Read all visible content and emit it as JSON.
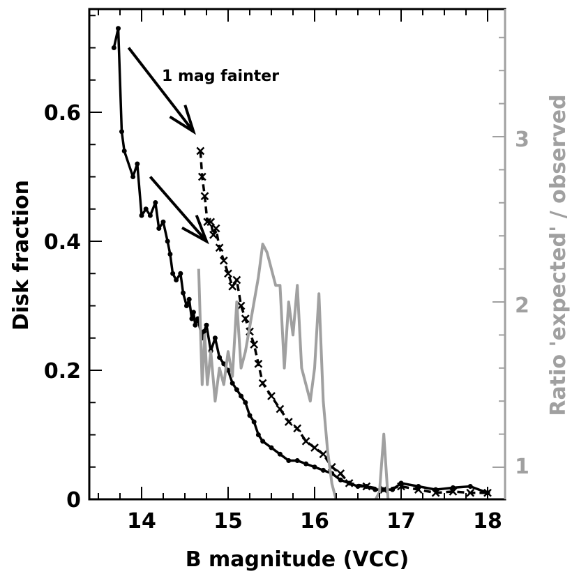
{
  "chart_data": {
    "type": "line",
    "title": "",
    "xlabel": "B magnitude (VCC)",
    "ylabel": "Disk fraction",
    "y2label": "Ratio 'expected' / observed",
    "xlim": [
      13.4,
      18.2
    ],
    "ylim": [
      0,
      0.76
    ],
    "y2lim": [
      0.8,
      3.7
    ],
    "x_ticks": [
      14,
      15,
      16,
      17,
      18
    ],
    "x_tick_labels": [
      "14",
      "15",
      "16",
      "17",
      "18"
    ],
    "y_ticks": [
      0,
      0.2,
      0.4,
      0.6
    ],
    "y_tick_labels": [
      "0",
      "0.2",
      "0.4",
      "0.6"
    ],
    "y2_ticks": [
      1,
      2,
      3
    ],
    "y2_tick_labels": [
      "1",
      "2",
      "3"
    ],
    "colors": {
      "axes": "#000000",
      "secondary": "#a0a0a0"
    },
    "annotation": "1 mag fainter",
    "arrows": [
      {
        "from": [
          13.85,
          0.7
        ],
        "to": [
          14.6,
          0.57
        ]
      },
      {
        "from": [
          14.1,
          0.5
        ],
        "to": [
          14.75,
          0.4
        ]
      }
    ],
    "series": [
      {
        "axis": "left",
        "style": "solid-dots",
        "x": [
          13.68,
          13.73,
          13.77,
          13.8,
          13.9,
          13.95,
          14.0,
          14.05,
          14.1,
          14.16,
          14.2,
          14.25,
          14.3,
          14.33,
          14.36,
          14.4,
          14.45,
          14.48,
          14.52,
          14.55,
          14.58,
          14.6,
          14.62,
          14.65,
          14.7,
          14.72,
          14.75,
          14.8,
          14.85,
          14.9,
          14.95,
          15.0,
          15.05,
          15.1,
          15.15,
          15.2,
          15.25,
          15.3,
          15.35,
          15.4,
          15.5,
          15.6,
          15.7,
          15.8,
          15.9,
          16.0,
          16.1,
          16.2,
          16.3,
          16.4,
          16.5,
          16.6,
          16.7,
          16.8,
          16.9,
          17.0,
          17.2,
          17.4,
          17.6,
          17.8,
          18.0
        ],
        "y": [
          0.7,
          0.73,
          0.57,
          0.54,
          0.5,
          0.52,
          0.44,
          0.45,
          0.44,
          0.46,
          0.42,
          0.43,
          0.4,
          0.38,
          0.35,
          0.34,
          0.35,
          0.32,
          0.3,
          0.31,
          0.28,
          0.29,
          0.27,
          0.28,
          0.25,
          0.26,
          0.27,
          0.23,
          0.25,
          0.22,
          0.21,
          0.2,
          0.18,
          0.17,
          0.16,
          0.15,
          0.13,
          0.12,
          0.1,
          0.09,
          0.08,
          0.07,
          0.06,
          0.06,
          0.055,
          0.05,
          0.045,
          0.04,
          0.03,
          0.025,
          0.02,
          0.02,
          0.015,
          0.015,
          0.015,
          0.025,
          0.02,
          0.015,
          0.018,
          0.02,
          0.01
        ]
      },
      {
        "axis": "left",
        "style": "dashed-crosses",
        "x": [
          14.68,
          14.7,
          14.73,
          14.76,
          14.8,
          14.83,
          14.86,
          14.9,
          14.95,
          15.0,
          15.05,
          15.1,
          15.15,
          15.2,
          15.25,
          15.3,
          15.35,
          15.4,
          15.5,
          15.6,
          15.7,
          15.8,
          15.9,
          16.0,
          16.1,
          16.2,
          16.3,
          16.4,
          16.6,
          16.8,
          17.0,
          17.2,
          17.4,
          17.6,
          17.8,
          18.0
        ],
        "y": [
          0.54,
          0.5,
          0.47,
          0.43,
          0.43,
          0.41,
          0.42,
          0.39,
          0.37,
          0.35,
          0.33,
          0.34,
          0.3,
          0.28,
          0.26,
          0.24,
          0.21,
          0.18,
          0.16,
          0.14,
          0.12,
          0.11,
          0.09,
          0.08,
          0.07,
          0.05,
          0.04,
          0.025,
          0.02,
          0.015,
          0.02,
          0.015,
          0.01,
          0.012,
          0.01,
          0.01
        ]
      },
      {
        "axis": "right",
        "style": "solid-gray",
        "x": [
          14.66,
          14.7,
          14.73,
          14.76,
          14.8,
          14.85,
          14.9,
          14.95,
          15.0,
          15.05,
          15.1,
          15.15,
          15.2,
          15.25,
          15.3,
          15.35,
          15.4,
          15.45,
          15.5,
          15.55,
          15.6,
          15.65,
          15.7,
          15.75,
          15.8,
          15.85,
          15.9,
          15.95,
          16.0,
          16.05,
          16.1,
          16.15,
          16.2,
          16.25,
          16.3,
          16.4,
          16.5,
          16.6,
          16.7,
          16.75,
          16.8,
          16.85,
          16.9
        ],
        "y": [
          2.2,
          1.5,
          1.8,
          1.5,
          1.7,
          1.4,
          1.6,
          1.5,
          1.7,
          1.55,
          2.0,
          1.6,
          1.7,
          1.85,
          2.0,
          2.15,
          2.35,
          2.3,
          2.2,
          2.1,
          2.1,
          1.6,
          2.0,
          1.8,
          2.1,
          1.6,
          1.5,
          1.4,
          1.6,
          2.05,
          1.4,
          1.1,
          0.9,
          0.8,
          0.8,
          0.8,
          0.8,
          0.8,
          0.8,
          0.85,
          1.2,
          0.8,
          0.8
        ]
      }
    ]
  }
}
